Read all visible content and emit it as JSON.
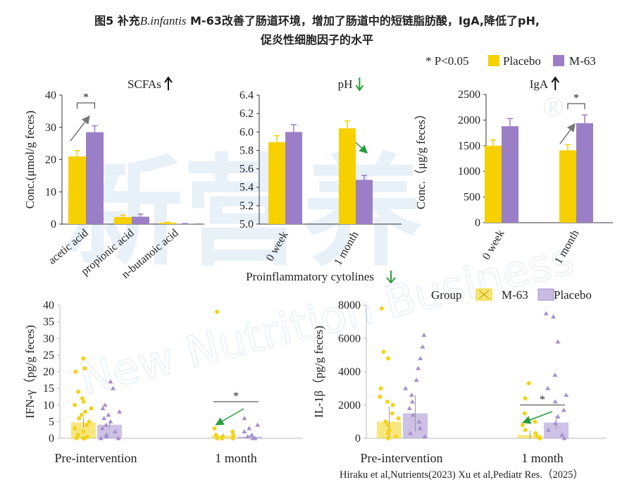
{
  "header": {
    "title_prefix": "图5 补充",
    "title_italic": "B.infantis",
    "title_rest": " M-63改善了肠道环境，增加了肠道中的短链脂肪酸，IgA,降低了pH,",
    "title_line2": "促炎性细胞因子的水平",
    "significance_note": "* P<0.05",
    "section_title": "Proinflammatory cytolines",
    "source": "Hiraku et al,Nutrients(2023) Xu et al,Pediatr Res.（2025）"
  },
  "watermark": {
    "logo": "新营养",
    "text": "New Nutrition Business",
    "mark": "®"
  },
  "chart_data": [
    {
      "type": "bar",
      "title": "SCFAs",
      "trend": "up",
      "y_label": "Conc.(μmol/g feces)",
      "significance": "*",
      "categories": [
        "acetic acid",
        "propionic acid",
        "n-butanoic acid"
      ],
      "series": [
        {
          "name": "Placebo",
          "color": "#f7d000",
          "values": [
            21,
            2.2,
            0.4
          ],
          "errors": [
            1.8,
            0.6,
            0.2
          ]
        },
        {
          "name": "M-63",
          "color": "#9a7fc6",
          "values": [
            28.5,
            2.3,
            0.1
          ],
          "errors": [
            2.0,
            0.8,
            0.1
          ]
        }
      ],
      "ylim": [
        0,
        40
      ],
      "yticks": [
        0,
        10,
        20,
        30,
        40
      ]
    },
    {
      "type": "bar",
      "title": "pH",
      "trend": "down",
      "categories": [
        "0 week",
        "1 month"
      ],
      "series": [
        {
          "name": "Placebo",
          "color": "#f7d000",
          "values": [
            5.89,
            6.04
          ],
          "errors": [
            0.07,
            0.08
          ]
        },
        {
          "name": "M-63",
          "color": "#9a7fc6",
          "values": [
            6.0,
            5.48
          ],
          "errors": [
            0.08,
            0.05
          ]
        }
      ],
      "ylim": [
        5.0,
        6.4
      ],
      "yticks": [
        {
          "value": 5,
          "label": "5.0"
        },
        5.2,
        5.4,
        5.6,
        5.8,
        {
          "value": 6,
          "label": "6.0"
        },
        6.2,
        6.4
      ]
    },
    {
      "type": "bar",
      "title": "IgA",
      "trend": "up",
      "y_label": "Conc.（μg/g feces）",
      "significance": "*",
      "categories": [
        "0 week",
        "1 month"
      ],
      "series": [
        {
          "name": "Placebo",
          "color": "#f7d000",
          "values": [
            1500,
            1410
          ],
          "errors": [
            110,
            110
          ]
        },
        {
          "name": "M-63",
          "color": "#9a7fc6",
          "values": [
            1880,
            1940
          ],
          "errors": [
            150,
            160
          ]
        }
      ],
      "ylim": [
        0,
        2500
      ],
      "yticks": [
        0,
        500,
        1000,
        1500,
        2000,
        2500
      ]
    },
    {
      "type": "dotbar",
      "y_label": "IFN-γ（pg/g feces)",
      "legend_title": "Group",
      "significance": "*",
      "categories": [
        "Pre-intervention",
        "1 month"
      ],
      "series": [
        {
          "name": "M-63",
          "color": "#f2d31a",
          "marker": "circle",
          "values": [
            4.8,
            0.8
          ],
          "errors": [
            1.5,
            0.6
          ],
          "points": [
            [
              24,
              21,
              20,
              14,
              12,
              11,
              10,
              9,
              8,
              7,
              6,
              5,
              4,
              3,
              2,
              1,
              0.5,
              0,
              0,
              0
            ],
            [
              38,
              3,
              2,
              1,
              1,
              0.5,
              0,
              0,
              0
            ]
          ]
        },
        {
          "name": "Placebo",
          "color": "#a48fcf",
          "marker": "triangle",
          "values": [
            4.1,
            0.5
          ],
          "errors": [
            1.2,
            0.4
          ],
          "points": [
            [
              17,
              15,
              10,
              9,
              8,
              7,
              6,
              5,
              4,
              3,
              2,
              1,
              0.5,
              0,
              0
            ],
            [
              6,
              4,
              3,
              2,
              1,
              0.5,
              0,
              0
            ]
          ]
        }
      ],
      "ylim": [
        0,
        40
      ],
      "yticks": [
        0,
        5,
        10,
        15,
        20,
        25,
        30,
        35,
        40
      ]
    },
    {
      "type": "dotbar",
      "y_label": "IL-1β（pg/g feces)",
      "significance": "*",
      "categories": [
        "Pre-intervention",
        "1 month"
      ],
      "series": [
        {
          "name": "M-63",
          "color": "#f2d31a",
          "marker": "circle",
          "values": [
            1000,
            200
          ],
          "errors": [
            900,
            250
          ],
          "points": [
            [
              7800,
              5200,
              4800,
              3000,
              2500,
              2200,
              2000,
              1500,
              1200,
              1000,
              800,
              500,
              300,
              100,
              0
            ],
            [
              3300,
              2400,
              1500,
              1000,
              800,
              500,
              300,
              100,
              0
            ]
          ]
        },
        {
          "name": "Placebo",
          "color": "#a48fcf",
          "marker": "triangle",
          "values": [
            1500,
            950
          ],
          "errors": [
            1100,
            400
          ],
          "points": [
            [
              6200,
              5500,
              4800,
              4200,
              3500,
              3000,
              2600,
              2200,
              1800,
              1400,
              1000,
              600,
              300,
              100
            ],
            [
              7500,
              7300,
              5800,
              3800,
              3000,
              2600,
              2200,
              1700,
              1300,
              900,
              500,
              200,
              0
            ]
          ]
        }
      ],
      "ylim": [
        0,
        8000
      ],
      "yticks": [
        0,
        2000,
        4000,
        6000,
        8000
      ]
    }
  ]
}
